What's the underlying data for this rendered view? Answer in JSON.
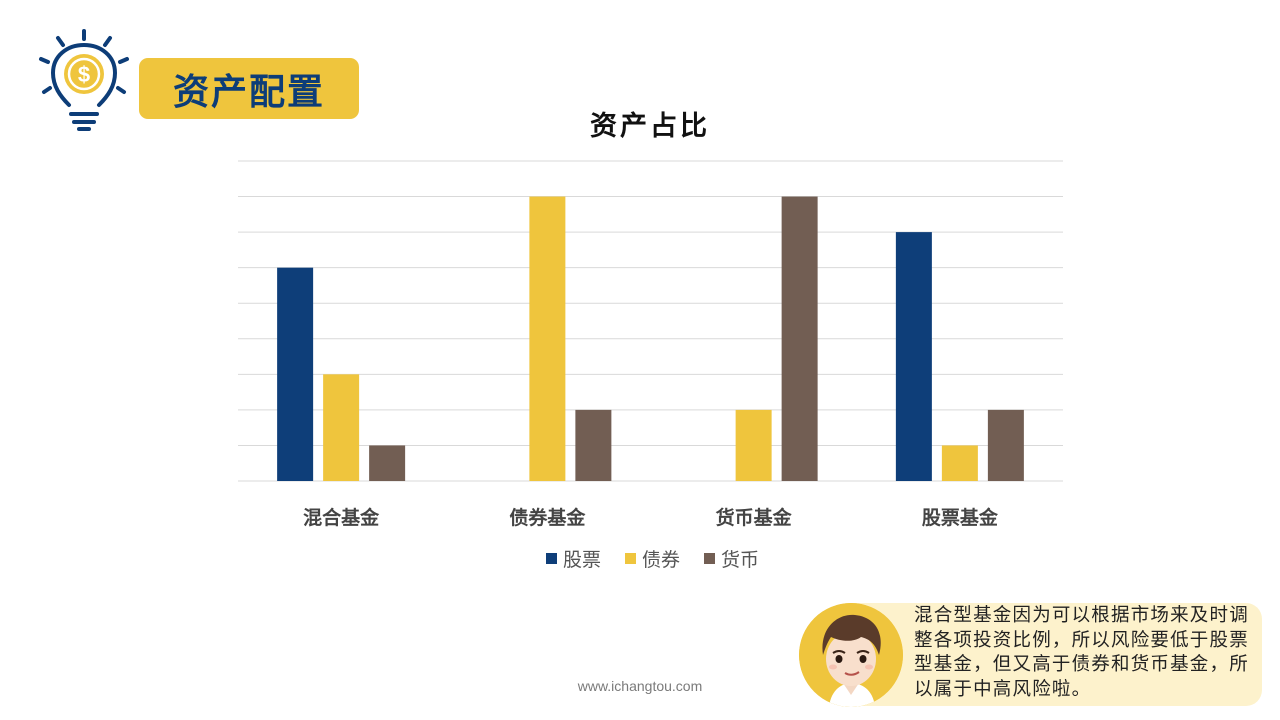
{
  "header": {
    "title": "资产配置"
  },
  "chart_data": {
    "type": "bar",
    "title": "资产占比",
    "categories": [
      "混合基金",
      "债券基金",
      "货币基金",
      "股票基金"
    ],
    "series": [
      {
        "name": "股票",
        "color": "#0e3e79",
        "values": [
          60,
          0,
          0,
          70
        ]
      },
      {
        "name": "债券",
        "color": "#efc53d",
        "values": [
          30,
          80,
          20,
          10
        ]
      },
      {
        "name": "货币",
        "color": "#725e53",
        "values": [
          10,
          20,
          80,
          20
        ]
      }
    ],
    "ylim": [
      0,
      90
    ],
    "grid": true,
    "legend": "bottom"
  },
  "note": {
    "text": "混合型基金因为可以根据市场来及时调整各项投资比例，所以风险要低于股票型基金，但又高于债券和货币基金，所以属于中高风险啦。"
  },
  "footer": {
    "url": "www.ichangtou.com"
  },
  "colors": {
    "accent": "#efc53d",
    "brand": "#0d3d78",
    "note_bg": "#fdf2cc"
  }
}
